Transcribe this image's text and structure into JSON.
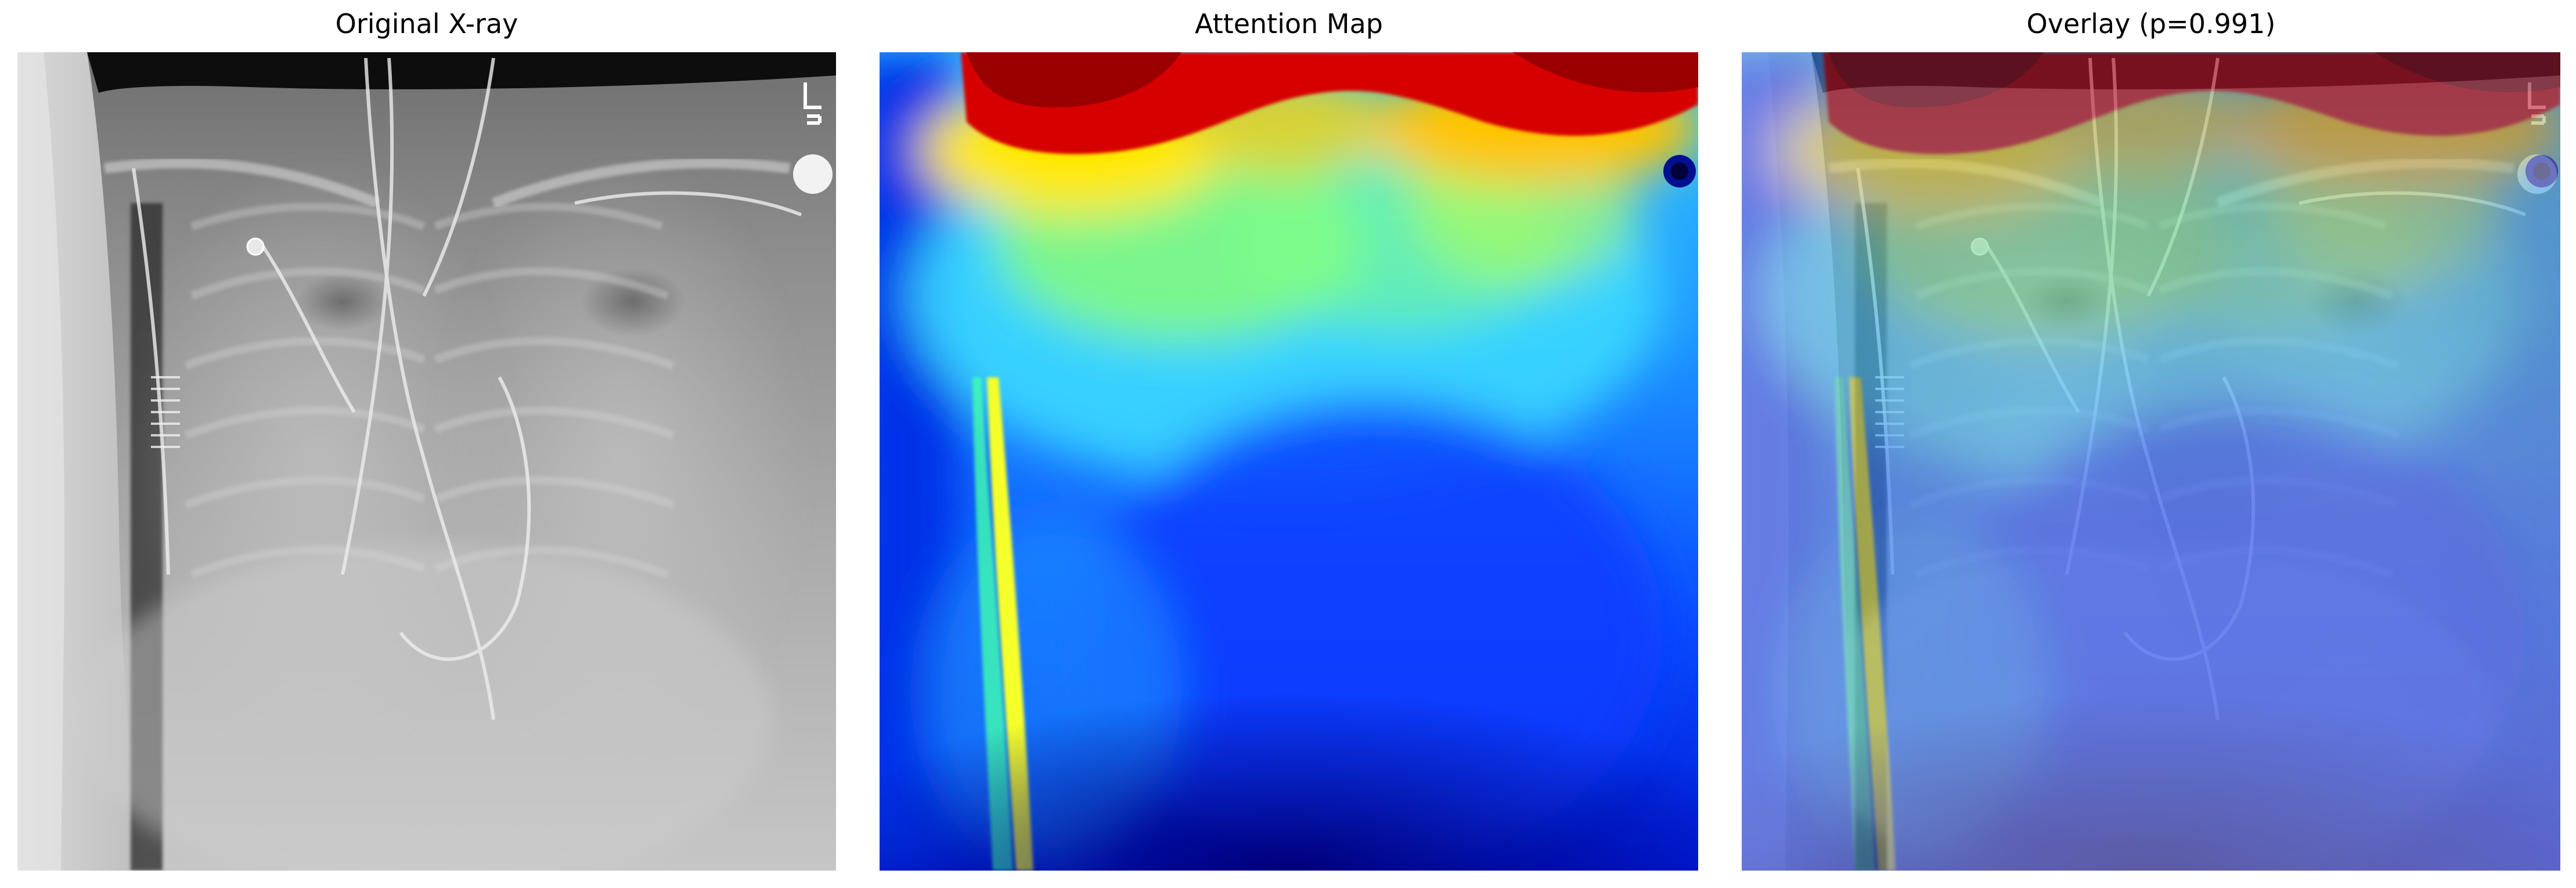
{
  "figure": {
    "panels": [
      {
        "title": "Original X-ray",
        "image": "grayscale chest radiograph",
        "colormap": "gray"
      },
      {
        "title": "Attention Map",
        "image": "attention heatmap",
        "colormap": "jet"
      },
      {
        "title": "Overlay (p=0.991)",
        "image": "heatmap blended over radiograph",
        "colormap": "jet"
      }
    ],
    "marker_text": "L"
  }
}
